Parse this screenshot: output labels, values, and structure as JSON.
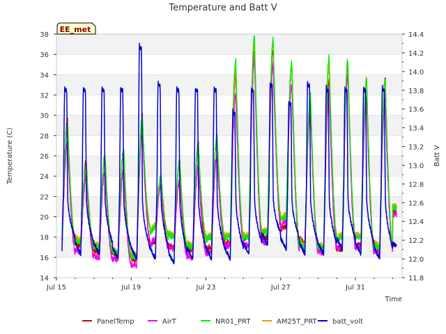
{
  "chart_data": {
    "type": "line",
    "title": "Temperature and Batt V",
    "badge": "EE_met",
    "xlabel": "Time",
    "ylabel_left": "Temperature (C)",
    "ylabel_right": "Batt V",
    "x_range_days": [
      0,
      18.5
    ],
    "x_tick_days": [
      0,
      4,
      8,
      12,
      16
    ],
    "x_tick_labels": [
      "Jul 15",
      "Jul 19",
      "Jul 23",
      "Jul 27",
      "Jul 31"
    ],
    "ylim_left": [
      14,
      38
    ],
    "yticks_left": [
      "14",
      "16",
      "18",
      "20",
      "22",
      "24",
      "26",
      "28",
      "30",
      "32",
      "34",
      "36",
      "38"
    ],
    "ylim_right": [
      11.8,
      14.4
    ],
    "yticks_right": [
      "11.8",
      "12.0",
      "12.2",
      "12.4",
      "12.6",
      "12.8",
      "13.0",
      "13.2",
      "13.4",
      "13.6",
      "13.8",
      "14.0",
      "14.2",
      "14.4"
    ],
    "grid": "horizontal bands",
    "legend_position": "bottom",
    "temperature_series": [
      {
        "name": "PanelTemp",
        "color": "#cc0000",
        "mins": [
          18.0,
          17.2,
          16.5,
          16.2,
          15.8,
          17.5,
          17.0,
          16.8,
          17.0,
          17.5,
          18.0,
          18.0,
          19.0,
          17.5,
          16.8,
          16.8,
          17.2,
          16.8
        ],
        "maxs": [
          29.5,
          25.5,
          26.0,
          26.5,
          30.0,
          24.0,
          25.5,
          27.2,
          28.0,
          34.0,
          36.0,
          36.5,
          35.0,
          31.5,
          33.5,
          35.0,
          33.5
        ],
        "final": 22.0
      },
      {
        "name": "AirT",
        "color": "#ee00ee",
        "mins": [
          17.2,
          16.5,
          16.0,
          15.8,
          15.2,
          17.8,
          16.8,
          16.0,
          16.5,
          17.2,
          17.2,
          17.5,
          19.5,
          16.8,
          16.5,
          17.0,
          17.0,
          16.5
        ],
        "maxs": [
          27.5,
          24.0,
          24.5,
          24.5,
          28.5,
          23.0,
          23.5,
          25.0,
          26.0,
          32.0,
          35.5,
          35.0,
          33.0,
          30.5,
          32.5,
          34.0,
          31.5
        ],
        "final": 21.8
      },
      {
        "name": "NR01_PRT",
        "color": "#00ee00",
        "mins": [
          18.5,
          17.5,
          17.0,
          16.5,
          16.0,
          19.0,
          18.0,
          17.0,
          18.0,
          18.0,
          18.0,
          18.5,
          20.0,
          17.0,
          17.0,
          18.0,
          18.0,
          17.0
        ],
        "maxs": [
          29.0,
          25.0,
          26.0,
          26.5,
          30.0,
          24.0,
          25.5,
          27.0,
          28.0,
          35.5,
          37.8,
          37.5,
          35.2,
          32.0,
          35.8,
          35.5,
          33.5
        ],
        "final": 22.5
      },
      {
        "name": "AM25T_PRT",
        "color": "#e8a000",
        "mins": [
          18.8,
          17.8,
          17.2,
          16.7,
          16.2,
          19.2,
          18.2,
          17.2,
          18.2,
          18.2,
          18.2,
          18.7,
          20.2,
          17.2,
          17.2,
          18.2,
          18.2,
          17.2
        ],
        "maxs": [
          29.2,
          25.2,
          25.8,
          26.2,
          29.8,
          23.8,
          25.2,
          26.8,
          27.8,
          34.5,
          37.0,
          37.2,
          35.0,
          31.8,
          34.8,
          35.2,
          33.5
        ],
        "final": 22.6
      }
    ],
    "battery_series": {
      "name": "batt_volt",
      "color": "#0000cc",
      "peaks": [
        13.85,
        13.85,
        13.85,
        13.85,
        14.3,
        13.9,
        13.85,
        13.85,
        13.85,
        13.6,
        13.85,
        13.9,
        13.7,
        13.9,
        13.85,
        13.85,
        13.85
      ],
      "mins": [
        12.1,
        12.05,
        12.05,
        12.0,
        12.0,
        12.0,
        11.95,
        12.0,
        12.0,
        12.0,
        12.05,
        12.15,
        12.1,
        12.05,
        12.05,
        12.1,
        12.05,
        12.0
      ],
      "final": 12.2
    }
  }
}
